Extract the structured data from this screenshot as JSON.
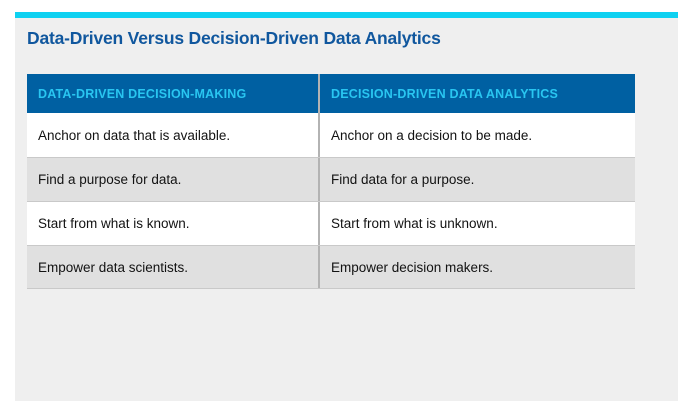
{
  "page": {
    "title": "Data-Driven Versus Decision-Driven Data Analytics"
  },
  "colors": {
    "accent_bar": "#0ED1F1",
    "panel_background": "#EFEFEF",
    "title_text": "#10579E",
    "table_header_background": "#0060A2",
    "table_header_text": "#29C6F1",
    "row_alternate_background": "#E0E0E0",
    "row_border": "#C9C9C9",
    "column_divider": "#B3B3B3",
    "body_text": "#121212"
  },
  "table": {
    "columns": [
      "DATA-DRIVEN DECISION-MAKING",
      "DECISION-DRIVEN DATA ANALYTICS"
    ],
    "rows": [
      {
        "left": "Anchor on data that is available.",
        "right": "Anchor on a decision to be made."
      },
      {
        "left": "Find a purpose for data.",
        "right": "Find data for a purpose."
      },
      {
        "left": "Start from what is known.",
        "right": "Start from what is unknown."
      },
      {
        "left": "Empower data scientists.",
        "right": "Empower decision makers."
      }
    ]
  }
}
